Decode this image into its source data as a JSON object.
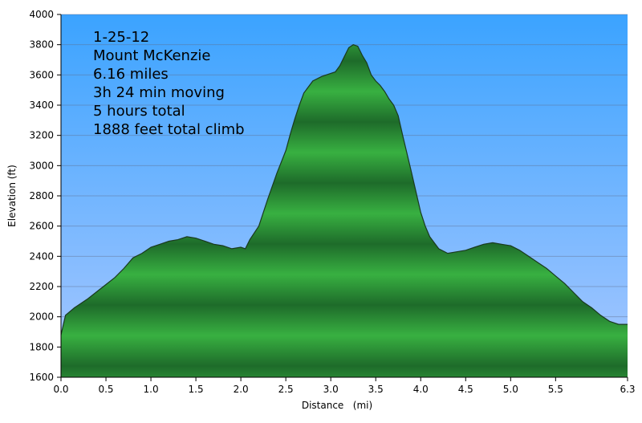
{
  "chart_data": {
    "type": "area",
    "xlabel": "Distance   (mi)",
    "ylabel": "Elevation (ft)",
    "xlim": [
      0,
      6.3
    ],
    "ylim": [
      1600,
      4000
    ],
    "x_ticks": [
      "0.0",
      "0.5",
      "1.0",
      "1.5",
      "2.0",
      "2.5",
      "3.0",
      "3.5",
      "4.0",
      "4.5",
      "5.0",
      "5.5",
      "6.3"
    ],
    "y_ticks": [
      "1600",
      "1800",
      "2000",
      "2200",
      "2400",
      "2600",
      "2800",
      "3000",
      "3200",
      "3400",
      "3600",
      "3800",
      "4000"
    ],
    "annotations": [
      "1-25-12",
      "Mount McKenzie",
      "6.16 miles",
      "3h 24 min moving",
      "5 hours total",
      "1888 feet total climb"
    ],
    "grid": true,
    "colors": {
      "sky_top": "#3ba3ff",
      "sky_bottom": "#a9c8ff",
      "fill_dark": "#1e6b2a",
      "fill_light": "#38b041",
      "outline": "#1a3a1f"
    },
    "series": [
      {
        "x": [
          0.0,
          0.05,
          0.15,
          0.3,
          0.45,
          0.6,
          0.7,
          0.8,
          0.9,
          1.0,
          1.1,
          1.2,
          1.3,
          1.4,
          1.5,
          1.6,
          1.7,
          1.8,
          1.9,
          2.0,
          2.05,
          2.1,
          2.2,
          2.3,
          2.4,
          2.5,
          2.55,
          2.6,
          2.65,
          2.7,
          2.8,
          2.9,
          3.0,
          3.05,
          3.1,
          3.15,
          3.2,
          3.25,
          3.3,
          3.35,
          3.4,
          3.45,
          3.5,
          3.55,
          3.6,
          3.65,
          3.7,
          3.75,
          3.8,
          3.9,
          4.0,
          4.05,
          4.1,
          4.2,
          4.3,
          4.4,
          4.5,
          4.6,
          4.7,
          4.8,
          4.9,
          5.0,
          5.1,
          5.2,
          5.3,
          5.4,
          5.5,
          5.6,
          5.7,
          5.8,
          5.9,
          6.0,
          6.1,
          6.2,
          6.3
        ],
        "y": [
          1880,
          2010,
          2060,
          2120,
          2190,
          2260,
          2320,
          2390,
          2420,
          2460,
          2480,
          2500,
          2510,
          2530,
          2520,
          2500,
          2480,
          2470,
          2450,
          2460,
          2450,
          2510,
          2600,
          2780,
          2950,
          3100,
          3210,
          3310,
          3400,
          3480,
          3560,
          3590,
          3610,
          3620,
          3660,
          3720,
          3780,
          3800,
          3790,
          3730,
          3680,
          3600,
          3560,
          3530,
          3490,
          3440,
          3400,
          3330,
          3200,
          2950,
          2690,
          2600,
          2530,
          2450,
          2420,
          2430,
          2440,
          2460,
          2480,
          2490,
          2480,
          2470,
          2440,
          2400,
          2360,
          2320,
          2270,
          2220,
          2160,
          2100,
          2060,
          2010,
          1970,
          1950,
          1950
        ]
      }
    ]
  }
}
